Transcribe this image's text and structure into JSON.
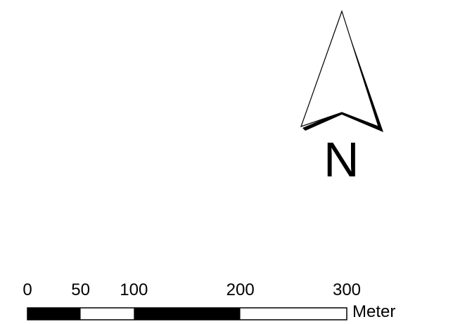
{
  "map": {
    "north_arrow": {
      "label": "N",
      "icon": "north-arrow-icon",
      "fill_color": "#ffffff",
      "shadow_color": "#000000",
      "outline_color": "#000000"
    },
    "scale_bar": {
      "unit": "Meter",
      "ticks": [
        "0",
        "50",
        "100",
        "200",
        "300"
      ],
      "tick_values": [
        0,
        50,
        100,
        200,
        300
      ],
      "segment_colors": [
        "#000000",
        "#ffffff",
        "#000000",
        "#000000",
        "#ffffff",
        "#ffffff"
      ],
      "outline_color": "#000000"
    }
  }
}
